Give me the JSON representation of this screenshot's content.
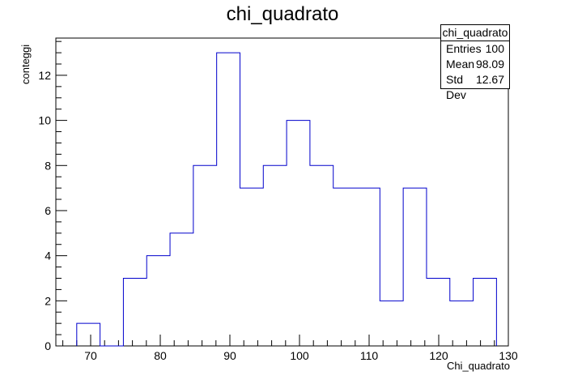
{
  "chart_data": {
    "type": "bar",
    "title": "chi_quadrato",
    "xlabel": "Chi_quadrato",
    "ylabel": "conteggi",
    "xlim": [
      65,
      130
    ],
    "ylim": [
      0,
      13.65
    ],
    "bin_width": 3.35,
    "bin_edges": [
      68.0,
      71.35,
      74.7,
      78.05,
      81.4,
      84.75,
      88.1,
      91.45,
      94.8,
      98.15,
      101.5,
      104.85,
      108.2,
      111.55,
      114.9,
      118.25,
      121.6,
      124.95,
      128.3
    ],
    "values": [
      1,
      0,
      3,
      4,
      5,
      8,
      13,
      7,
      8,
      10,
      8,
      7,
      7,
      2,
      7,
      3,
      2,
      3
    ],
    "x_ticks": [
      70,
      80,
      90,
      100,
      110,
      120,
      130
    ],
    "y_ticks": [
      0,
      2,
      4,
      6,
      8,
      10,
      12
    ],
    "line_color": "#0000cc",
    "stats": {
      "title": "chi_quadrato",
      "rows": [
        {
          "label": "Entries",
          "value": "100"
        },
        {
          "label": "Mean",
          "value": "98.09"
        },
        {
          "label": "Std Dev",
          "value": "12.67"
        }
      ]
    }
  }
}
